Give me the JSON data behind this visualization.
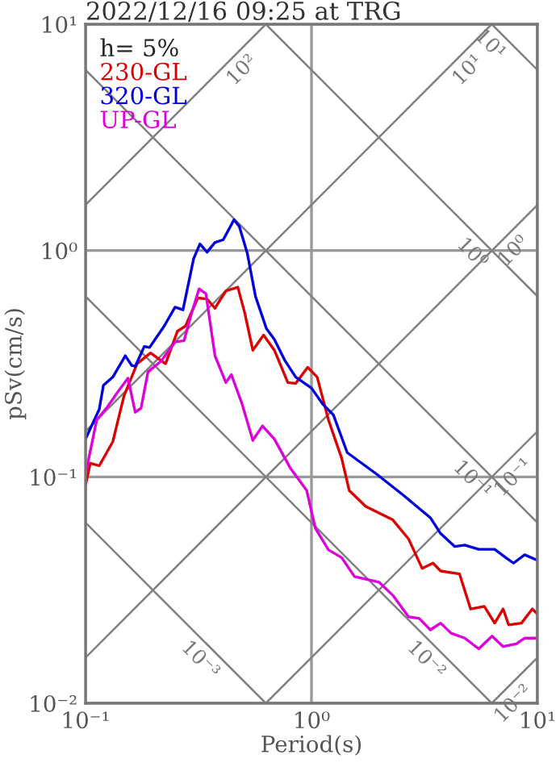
{
  "chart_data": {
    "type": "line",
    "title": "2022/12/16 09:25 at TRG",
    "xlabel": "Period(s)",
    "ylabel": "pSv(cm/s)",
    "legend_title": "h= 5%",
    "legend": "top left",
    "log": "xy",
    "grid": true,
    "xlim": [
      0.1,
      10
    ],
    "ylim": [
      0.01,
      10
    ],
    "xticks": [
      {
        "value": 0.1,
        "label": "10⁻¹"
      },
      {
        "value": 1,
        "label": "10⁰"
      },
      {
        "value": 10,
        "label": "10¹"
      }
    ],
    "yticks": [
      {
        "value": 0.01,
        "label": "10⁻²"
      },
      {
        "value": 0.1,
        "label": "10⁻¹"
      },
      {
        "value": 1,
        "label": "10⁰"
      },
      {
        "value": 10,
        "label": "10¹"
      }
    ],
    "annotations": [
      {
        "text": "10²",
        "x": 0.44,
        "y": 7.0
      },
      {
        "text": "10¹",
        "x": 4.4,
        "y": 7.0
      },
      {
        "text": "10⁰",
        "x": 7.0,
        "y": 1.11
      },
      {
        "text": "10⁻¹",
        "x": 7.0,
        "y": 0.111
      },
      {
        "text": "10⁻²",
        "x": 7.0,
        "y": 0.0111
      },
      {
        "text": "10¹",
        "x": 6.9,
        "y": 9.1
      },
      {
        "text": "10⁰",
        "x": 5.75,
        "y": 1.09
      },
      {
        "text": "10⁻¹",
        "x": 5.75,
        "y": 0.109
      },
      {
        "text": "10⁻²",
        "x": 3.6,
        "y": 0.0174
      },
      {
        "text": "10⁻³",
        "x": 0.36,
        "y": 0.0174
      }
    ],
    "series": [
      {
        "type": "line",
        "color": "#808080",
        "x": [
          0.1,
          0.628
        ],
        "values": [
          1.59,
          10
        ]
      },
      {
        "type": "line",
        "color": "#808080",
        "x": [
          0.1,
          6.28
        ],
        "values": [
          0.159,
          10
        ]
      },
      {
        "type": "line",
        "color": "#808080",
        "x": [
          0.1,
          10
        ],
        "values": [
          0.0159,
          1.59
        ]
      },
      {
        "type": "line",
        "color": "#808080",
        "x": [
          0.628,
          10
        ],
        "values": [
          0.01,
          0.159
        ]
      },
      {
        "type": "line",
        "color": "#808080",
        "x": [
          6.28,
          10
        ],
        "values": [
          0.01,
          0.0159
        ]
      },
      {
        "type": "line",
        "color": "#808080",
        "x": [
          6.28,
          10
        ],
        "values": [
          10,
          6.28
        ]
      },
      {
        "type": "line",
        "color": "#808080",
        "x": [
          0.628,
          10
        ],
        "values": [
          10,
          0.628
        ]
      },
      {
        "type": "line",
        "color": "#808080",
        "x": [
          0.1,
          10
        ],
        "values": [
          6.28,
          0.0628
        ]
      },
      {
        "type": "line",
        "color": "#808080",
        "x": [
          0.1,
          6.28
        ],
        "values": [
          0.628,
          0.01
        ]
      },
      {
        "type": "line",
        "color": "#808080",
        "x": [
          0.1,
          0.628
        ],
        "values": [
          0.0628,
          0.01
        ]
      },
      {
        "name": "230-GL",
        "color": "#dd0000",
        "x": [
          0.1,
          0.105,
          0.115,
          0.132,
          0.148,
          0.169,
          0.194,
          0.226,
          0.255,
          0.277,
          0.314,
          0.345,
          0.374,
          0.418,
          0.472,
          0.506,
          0.55,
          0.614,
          0.685,
          0.786,
          0.852,
          0.962,
          1.06,
          1.19,
          1.36,
          1.47,
          1.74,
          2.29,
          2.69,
          3.09,
          3.45,
          3.73,
          4.52,
          5.06,
          5.82,
          6.47,
          7.05,
          7.46,
          8.5,
          9.5,
          10
        ],
        "values": [
          0.092,
          0.115,
          0.112,
          0.143,
          0.228,
          0.316,
          0.353,
          0.316,
          0.44,
          0.464,
          0.617,
          0.611,
          0.556,
          0.663,
          0.689,
          0.533,
          0.363,
          0.423,
          0.363,
          0.261,
          0.259,
          0.305,
          0.276,
          0.178,
          0.121,
          0.087,
          0.074,
          0.0646,
          0.0532,
          0.0394,
          0.0416,
          0.0384,
          0.0373,
          0.0261,
          0.0268,
          0.0226,
          0.0261,
          0.0222,
          0.0226,
          0.0261,
          0.0248
        ]
      },
      {
        "name": "320-GL",
        "color": "#0000dd",
        "x": [
          0.1,
          0.115,
          0.12,
          0.132,
          0.15,
          0.16,
          0.166,
          0.182,
          0.192,
          0.223,
          0.249,
          0.27,
          0.301,
          0.321,
          0.345,
          0.374,
          0.407,
          0.454,
          0.479,
          0.52,
          0.565,
          0.632,
          0.685,
          0.765,
          0.852,
          1.0,
          1.12,
          1.25,
          1.44,
          1.94,
          2.55,
          3.36,
          3.73,
          4.3,
          4.77,
          5.5,
          6.47,
          7.22,
          7.84,
          8.78,
          10
        ],
        "values": [
          0.147,
          0.199,
          0.254,
          0.276,
          0.343,
          0.311,
          0.308,
          0.377,
          0.373,
          0.464,
          0.562,
          0.547,
          0.921,
          1.07,
          0.984,
          1.086,
          1.116,
          1.367,
          1.28,
          0.973,
          0.628,
          0.452,
          0.405,
          0.325,
          0.276,
          0.247,
          0.21,
          0.188,
          0.128,
          0.103,
          0.083,
          0.066,
          0.0562,
          0.0493,
          0.05,
          0.0479,
          0.0479,
          0.0441,
          0.0416,
          0.0453,
          0.0428
        ]
      },
      {
        "name": "UP-GL",
        "color": "#dd00dd",
        "x": [
          0.1,
          0.112,
          0.125,
          0.14,
          0.154,
          0.166,
          0.176,
          0.189,
          0.216,
          0.249,
          0.273,
          0.293,
          0.318,
          0.341,
          0.374,
          0.418,
          0.442,
          0.493,
          0.55,
          0.607,
          0.685,
          0.808,
          0.952,
          1.04,
          1.19,
          1.36,
          1.55,
          1.99,
          2.29,
          2.69,
          3.0,
          3.36,
          3.73,
          4.15,
          4.77,
          5.5,
          6.3,
          7.05,
          8.06,
          8.8,
          10
        ],
        "values": [
          0.103,
          0.178,
          0.204,
          0.24,
          0.273,
          0.193,
          0.201,
          0.291,
          0.325,
          0.394,
          0.4,
          0.518,
          0.677,
          0.645,
          0.343,
          0.261,
          0.283,
          0.21,
          0.145,
          0.168,
          0.147,
          0.109,
          0.0873,
          0.0594,
          0.0476,
          0.044,
          0.0363,
          0.0343,
          0.03,
          0.0241,
          0.0237,
          0.0211,
          0.0226,
          0.0204,
          0.0194,
          0.0174,
          0.0198,
          0.0178,
          0.0183,
          0.0194,
          0.0194
        ]
      }
    ]
  }
}
